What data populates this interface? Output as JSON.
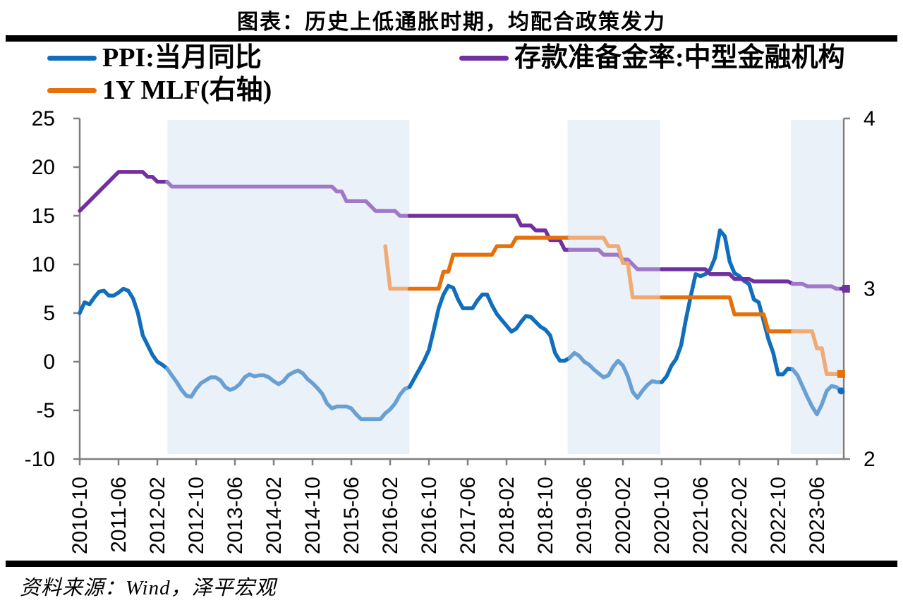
{
  "header": {
    "title": "图表：历史上低通胀时期，均配合政策发力"
  },
  "source": {
    "text": "资料来源：Wind，泽平宏观"
  },
  "legend": {
    "items": [
      {
        "key": "ppi",
        "label": "PPI:当月同比",
        "color": "#106EBC"
      },
      {
        "key": "rrr",
        "label": "存款准备金率:中型金融机构",
        "color": "#7030A0"
      },
      {
        "key": "mlf",
        "label": "1Y MLF(右轴)",
        "color": "#E6700A"
      }
    ]
  },
  "chart_data": {
    "type": "line",
    "title": "图表：历史上低通胀时期，均配合政策发力",
    "xlabel": "",
    "ylabel": "",
    "x_unit": "month",
    "x_start": "2010-10",
    "x_end": "2023-11",
    "x_tick_interval_months": 8,
    "x_tick_labels": [
      "2010-10",
      "2011-06",
      "2012-02",
      "2012-10",
      "2013-06",
      "2014-02",
      "2014-10",
      "2015-06",
      "2016-02",
      "2016-10",
      "2017-06",
      "2018-02",
      "2018-10",
      "2019-06",
      "2020-02",
      "2020-10",
      "2021-06",
      "2022-02",
      "2022-10",
      "2023-06"
    ],
    "left_axis": {
      "ticks": [
        25,
        20,
        15,
        10,
        5,
        0,
        -5,
        -10
      ],
      "min": -10,
      "max": 25
    },
    "right_axis": {
      "ticks": [
        4,
        3,
        2
      ],
      "min": 2,
      "max": 4
    },
    "grid": false,
    "legend_position": "top",
    "region_fill": "#EAF1F8",
    "shaded_regions_months": [
      [
        18.1,
        68
      ],
      [
        100.6,
        119.7
      ],
      [
        146.6,
        157.2
      ]
    ],
    "shaded_regions_dates": [
      [
        "2012-04",
        "2016-06"
      ],
      [
        "2019-03",
        "2020-09"
      ],
      [
        "2022-12",
        "2023-11"
      ]
    ],
    "series": [
      {
        "key": "ppi",
        "name": "PPI:当月同比",
        "axis": "left",
        "start_month": 0,
        "color": "#106EBC",
        "light_color": "#69A0D4",
        "end_marker": "circle",
        "values": [
          5.0,
          6.1,
          5.9,
          6.6,
          7.2,
          7.3,
          6.8,
          6.8,
          7.1,
          7.5,
          7.3,
          6.5,
          5.0,
          2.7,
          1.7,
          0.7,
          0.0,
          -0.3,
          -0.7,
          -1.4,
          -2.1,
          -2.9,
          -3.5,
          -3.6,
          -2.8,
          -2.2,
          -1.9,
          -1.6,
          -1.6,
          -1.9,
          -2.6,
          -2.9,
          -2.7,
          -2.3,
          -1.6,
          -1.3,
          -1.5,
          -1.4,
          -1.4,
          -1.6,
          -2.0,
          -2.3,
          -2.0,
          -1.4,
          -1.1,
          -0.9,
          -1.2,
          -1.8,
          -2.2,
          -2.7,
          -3.3,
          -4.3,
          -4.8,
          -4.6,
          -4.6,
          -4.6,
          -4.8,
          -5.4,
          -5.9,
          -5.9,
          -5.9,
          -5.9,
          -5.9,
          -5.3,
          -4.9,
          -4.3,
          -3.4,
          -2.8,
          -2.6,
          -1.7,
          -0.8,
          0.1,
          1.2,
          3.3,
          5.5,
          6.9,
          7.8,
          7.6,
          6.4,
          5.5,
          5.5,
          5.5,
          6.3,
          6.9,
          6.9,
          5.8,
          4.9,
          4.3,
          3.7,
          3.1,
          3.4,
          4.1,
          4.7,
          4.6,
          4.1,
          3.6,
          3.3,
          2.7,
          0.9,
          0.1,
          0.1,
          0.4,
          0.9,
          0.6,
          0.0,
          -0.3,
          -0.8,
          -1.2,
          -1.6,
          -1.4,
          -0.5,
          0.1,
          -0.4,
          -1.5,
          -3.1,
          -3.7,
          -3.0,
          -2.4,
          -2.0,
          -2.1,
          -2.1,
          -1.5,
          -0.4,
          0.3,
          1.7,
          4.4,
          6.8,
          9.0,
          8.8,
          9.0,
          9.5,
          10.7,
          13.5,
          12.9,
          10.3,
          9.1,
          8.8,
          8.3,
          8.0,
          6.4,
          6.1,
          4.2,
          2.3,
          0.9,
          -1.3,
          -1.3,
          -0.7,
          -0.8,
          -1.4,
          -2.5,
          -3.6,
          -4.6,
          -5.4,
          -4.4,
          -3.0,
          -2.5,
          -2.6,
          -3.0
        ]
      },
      {
        "key": "rrr",
        "name": "存款准备金率:中型金融机构",
        "axis": "left",
        "start_month": 0,
        "color": "#7030A0",
        "light_color": "#A078C8",
        "end_marker": "square",
        "values": [
          15.5,
          16,
          16.5,
          17,
          17.5,
          18,
          18.5,
          19,
          19.5,
          19.5,
          19.5,
          19.5,
          19.5,
          19.5,
          19,
          19,
          18.5,
          18.5,
          18.5,
          18,
          18,
          18,
          18,
          18,
          18,
          18,
          18,
          18,
          18,
          18,
          18,
          18,
          18,
          18,
          18,
          18,
          18,
          18,
          18,
          18,
          18,
          18,
          18,
          18,
          18,
          18,
          18,
          18,
          18,
          18,
          18,
          18,
          18,
          17.5,
          17.5,
          16.5,
          16.5,
          16.5,
          16.5,
          16.5,
          16,
          15.5,
          15.5,
          15.5,
          15.5,
          15.5,
          15,
          15,
          15,
          15,
          15,
          15,
          15,
          15,
          15,
          15,
          15,
          15,
          15,
          15,
          15,
          15,
          15,
          15,
          15,
          15,
          15,
          15,
          15,
          15,
          15,
          14,
          14,
          14,
          13.5,
          13.5,
          13.5,
          12.5,
          12.5,
          12.5,
          11.5,
          11.5,
          11.5,
          11.5,
          11.5,
          11.5,
          11.5,
          11.5,
          11,
          11,
          11,
          11,
          10.5,
          10.5,
          10,
          9.5,
          9.5,
          9.5,
          9.5,
          9.5,
          9.5,
          9.5,
          9.5,
          9.5,
          9.5,
          9.5,
          9.5,
          9.5,
          9.5,
          9.5,
          9,
          9,
          9,
          9,
          9,
          8.5,
          8.5,
          8.5,
          8.5,
          8.25,
          8.25,
          8.25,
          8.25,
          8.25,
          8.25,
          8.25,
          8.25,
          8,
          8,
          8,
          7.75,
          7.75,
          7.75,
          7.75,
          7.75,
          7.75,
          7.5,
          7.5,
          7.5
        ]
      },
      {
        "key": "mlf",
        "name": "1Y MLF(右轴)",
        "axis": "right",
        "start_month": 63,
        "color": "#E6700A",
        "light_color": "#F0AA73",
        "end_marker": "square",
        "values": [
          3.25,
          3.0,
          3.0,
          3.0,
          3.0,
          3.0,
          3.0,
          3.0,
          3.0,
          3.0,
          3.0,
          3.0,
          3.1,
          3.1,
          3.2,
          3.2,
          3.2,
          3.2,
          3.2,
          3.2,
          3.2,
          3.2,
          3.2,
          3.25,
          3.25,
          3.25,
          3.25,
          3.3,
          3.3,
          3.3,
          3.3,
          3.3,
          3.3,
          3.3,
          3.3,
          3.3,
          3.3,
          3.3,
          3.3,
          3.3,
          3.3,
          3.3,
          3.3,
          3.3,
          3.3,
          3.3,
          3.25,
          3.25,
          3.25,
          3.15,
          3.15,
          2.95,
          2.95,
          2.95,
          2.95,
          2.95,
          2.95,
          2.95,
          2.95,
          2.95,
          2.95,
          2.95,
          2.95,
          2.95,
          2.95,
          2.95,
          2.95,
          2.95,
          2.95,
          2.95,
          2.95,
          2.95,
          2.85,
          2.85,
          2.85,
          2.85,
          2.85,
          2.85,
          2.85,
          2.75,
          2.75,
          2.75,
          2.75,
          2.75,
          2.75,
          2.75,
          2.75,
          2.75,
          2.75,
          2.65,
          2.65,
          2.5,
          2.5,
          2.5,
          2.5
        ]
      }
    ]
  }
}
